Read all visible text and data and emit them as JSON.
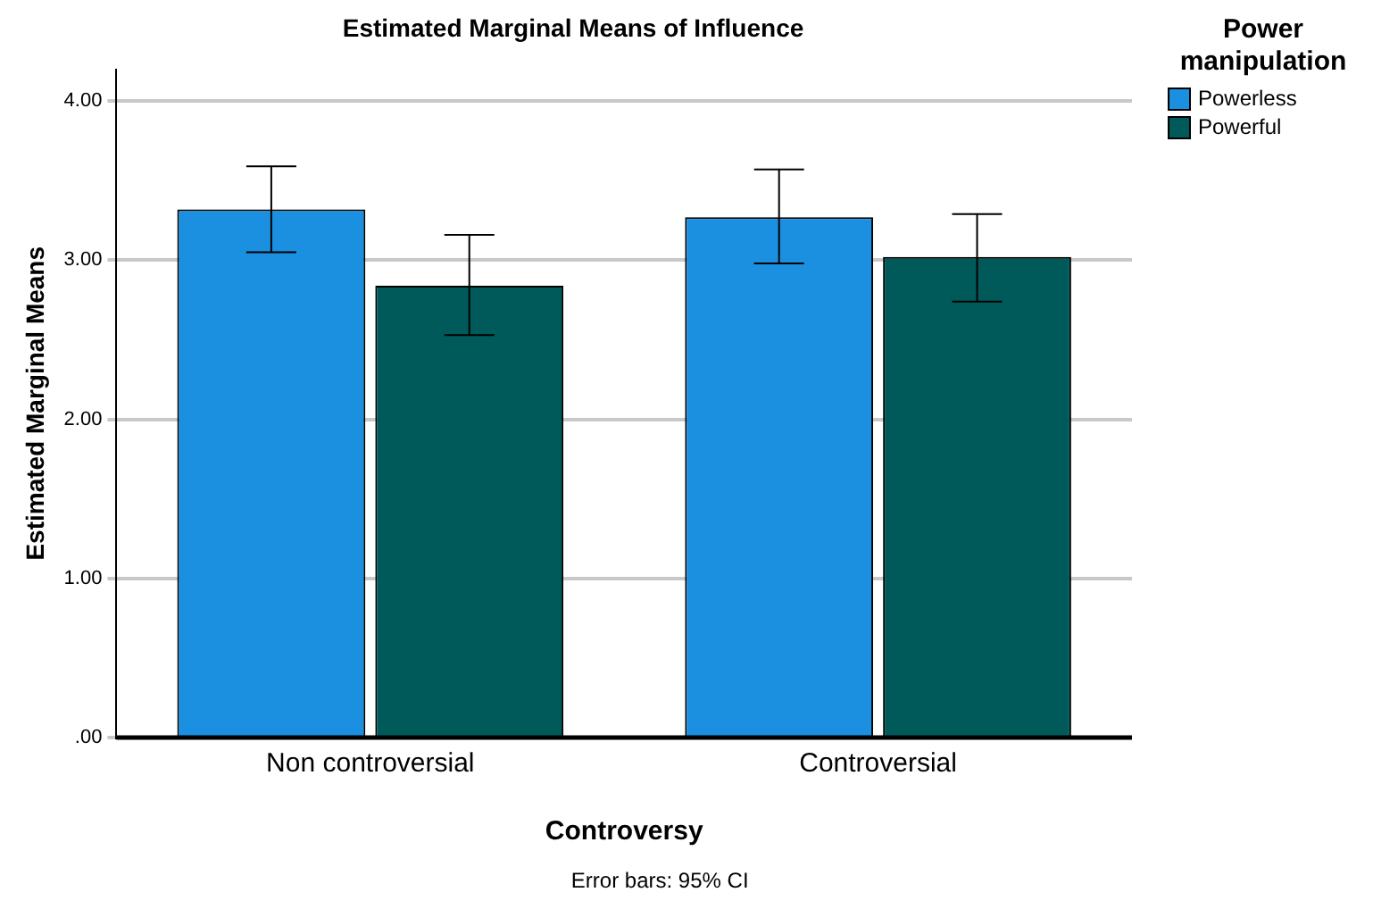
{
  "chart_data": {
    "type": "bar",
    "title": "Estimated Marginal Means of Influence",
    "xlabel": "Controversy",
    "ylabel": "Estimated Marginal Means",
    "legend_title": "Power manipulation",
    "categories": [
      "Non controversial",
      "Controversial"
    ],
    "series": [
      {
        "name": "Powerless",
        "color": "#1b8fe0",
        "values": [
          3.32,
          3.27
        ],
        "errors": [
          [
            3.05,
            3.59
          ],
          [
            2.98,
            3.57
          ]
        ]
      },
      {
        "name": "Powerful",
        "color": "#005a5a",
        "values": [
          2.84,
          3.02
        ],
        "errors": [
          [
            2.53,
            3.16
          ],
          [
            2.74,
            3.29
          ]
        ]
      }
    ],
    "ylim": [
      0,
      4.2
    ],
    "yticks": [
      {
        "value": 0,
        "label": ".00"
      },
      {
        "value": 1,
        "label": "1.00"
      },
      {
        "value": 2,
        "label": "2.00"
      },
      {
        "value": 3,
        "label": "3.00"
      },
      {
        "value": 4,
        "label": "4.00"
      }
    ],
    "grid": "y",
    "legend": "top right",
    "annotations": [
      "Error bars: 95% CI"
    ]
  }
}
